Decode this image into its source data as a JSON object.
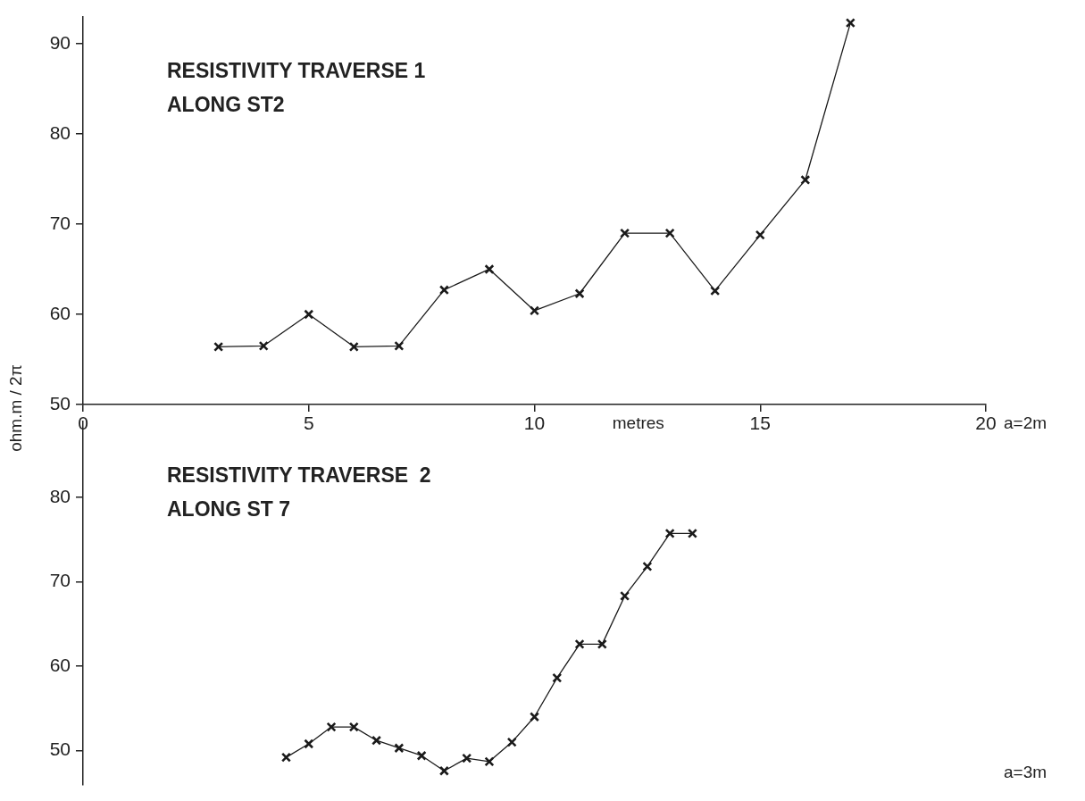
{
  "chart_data": [
    {
      "type": "line",
      "title": "RESISTIVITY TRAVERSE 1",
      "subtitle": "ALONG ST2",
      "xlabel": "metres",
      "ylabel": "ohm.m / 2π",
      "marker": "cross",
      "xlim": [
        0,
        20
      ],
      "xticks": [
        0,
        5,
        10,
        15,
        20
      ],
      "ylim": [
        50,
        93
      ],
      "yticks": [
        50,
        60,
        70,
        80,
        90
      ],
      "annotations": [
        "a=2m"
      ],
      "x": [
        3,
        4,
        5,
        6,
        7,
        8,
        9,
        10,
        11,
        12,
        13,
        14,
        15,
        16,
        17
      ],
      "series": [
        {
          "color": "#1a1a1a",
          "values": [
            56.4,
            56.5,
            60.0,
            56.4,
            56.5,
            62.7,
            65.0,
            60.4,
            62.3,
            69.0,
            69.0,
            62.6,
            68.8,
            74.9,
            92.3
          ]
        }
      ]
    },
    {
      "type": "line",
      "title": "RESISTIVITY TRAVERSE  2",
      "subtitle": "ALONG ST 7",
      "marker": "cross",
      "tick_labels": "y",
      "xlim": [
        0,
        20
      ],
      "ylim": [
        46,
        89
      ],
      "yticks": [
        50,
        60,
        70,
        80
      ],
      "annotations": [
        "a=3m"
      ],
      "x": [
        4.5,
        5,
        5.5,
        6,
        6.5,
        7,
        7.5,
        8,
        8.5,
        9,
        9.5,
        10,
        10.5,
        11,
        11.5,
        12,
        12.5,
        13,
        13.5
      ],
      "series": [
        {
          "color": "#1a1a1a",
          "values": [
            49.2,
            50.8,
            52.8,
            52.8,
            51.2,
            50.3,
            49.4,
            47.6,
            49.1,
            48.7,
            51.0,
            54.0,
            58.6,
            62.6,
            62.6,
            68.3,
            71.8,
            75.7,
            75.7
          ]
        }
      ]
    }
  ]
}
